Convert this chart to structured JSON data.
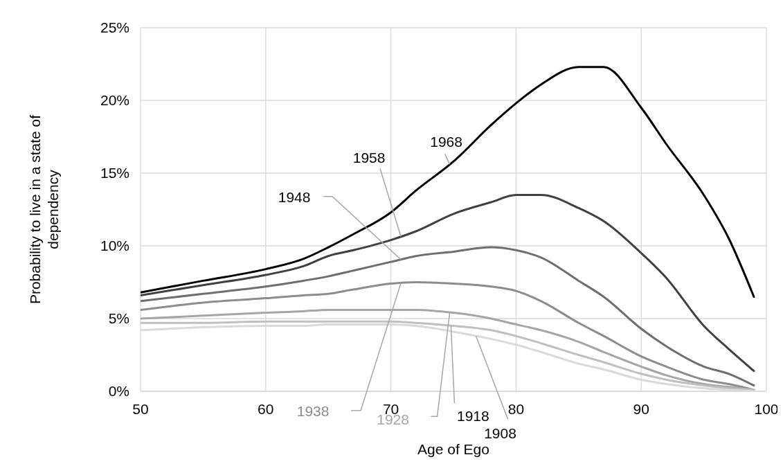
{
  "chart_data": {
    "type": "line",
    "xlabel": "Age of Ego",
    "ylabel": "Probability to live in a state of dependency",
    "x": [
      50,
      55,
      60,
      63,
      65,
      67,
      70,
      72,
      75,
      78,
      80,
      82,
      85,
      87,
      90,
      92,
      95,
      97,
      99
    ],
    "series": [
      {
        "name": "1968",
        "color": "#000000",
        "values": [
          6.8,
          7.6,
          8.4,
          9.1,
          9.9,
          10.8,
          12.3,
          13.8,
          15.8,
          18.3,
          19.8,
          21.1,
          22.3,
          22.3,
          19.5,
          17.0,
          13.5,
          10.5,
          6.5
        ]
      },
      {
        "name": "1958",
        "color": "#404040",
        "values": [
          6.6,
          7.3,
          8.0,
          8.6,
          9.3,
          9.7,
          10.4,
          11.0,
          12.2,
          13.0,
          13.5,
          13.5,
          12.6,
          11.7,
          9.5,
          7.8,
          4.5,
          2.9,
          1.4
        ]
      },
      {
        "name": "1948",
        "color": "#6e6e6e",
        "values": [
          6.2,
          6.7,
          7.2,
          7.6,
          7.9,
          8.3,
          8.9,
          9.3,
          9.6,
          9.9,
          9.7,
          9.2,
          7.6,
          6.5,
          4.3,
          3.1,
          1.7,
          1.2,
          0.4
        ]
      },
      {
        "name": "1938",
        "color": "#8c8c8c",
        "values": [
          5.6,
          6.1,
          6.4,
          6.6,
          6.7,
          7.0,
          7.4,
          7.5,
          7.4,
          7.2,
          6.9,
          6.2,
          4.7,
          3.8,
          2.4,
          1.7,
          0.8,
          0.5,
          0.1
        ]
      },
      {
        "name": "1928",
        "color": "#a5a5a5",
        "values": [
          5.0,
          5.2,
          5.4,
          5.5,
          5.6,
          5.6,
          5.6,
          5.6,
          5.4,
          5.0,
          4.6,
          4.2,
          3.4,
          2.7,
          1.7,
          1.1,
          0.5,
          0.3,
          0.1
        ]
      },
      {
        "name": "1918",
        "color": "#bfbfbf",
        "values": [
          4.7,
          4.7,
          4.8,
          4.8,
          4.8,
          4.8,
          4.8,
          4.7,
          4.5,
          4.2,
          3.8,
          3.3,
          2.5,
          2.0,
          1.2,
          0.8,
          0.4,
          0.2,
          0.1
        ]
      },
      {
        "name": "1908",
        "color": "#d9d9d9",
        "values": [
          4.2,
          4.4,
          4.5,
          4.5,
          4.6,
          4.6,
          4.6,
          4.5,
          4.1,
          3.6,
          3.2,
          2.7,
          1.9,
          1.5,
          0.8,
          0.5,
          0.2,
          0.1,
          0.0
        ]
      }
    ],
    "xlim": [
      50,
      100
    ],
    "xticks": [
      50,
      60,
      70,
      80,
      90,
      100
    ],
    "ylim": [
      0,
      25
    ],
    "yticks": [
      {
        "value": 0,
        "label": "0%"
      },
      {
        "value": 5,
        "label": "5%"
      },
      {
        "value": 10,
        "label": "10%"
      },
      {
        "value": 15,
        "label": "15%"
      },
      {
        "value": 20,
        "label": "20%"
      },
      {
        "value": 25,
        "label": "25%"
      }
    ],
    "grid": true,
    "legend": false,
    "marker": "none",
    "line_style": "solid"
  }
}
